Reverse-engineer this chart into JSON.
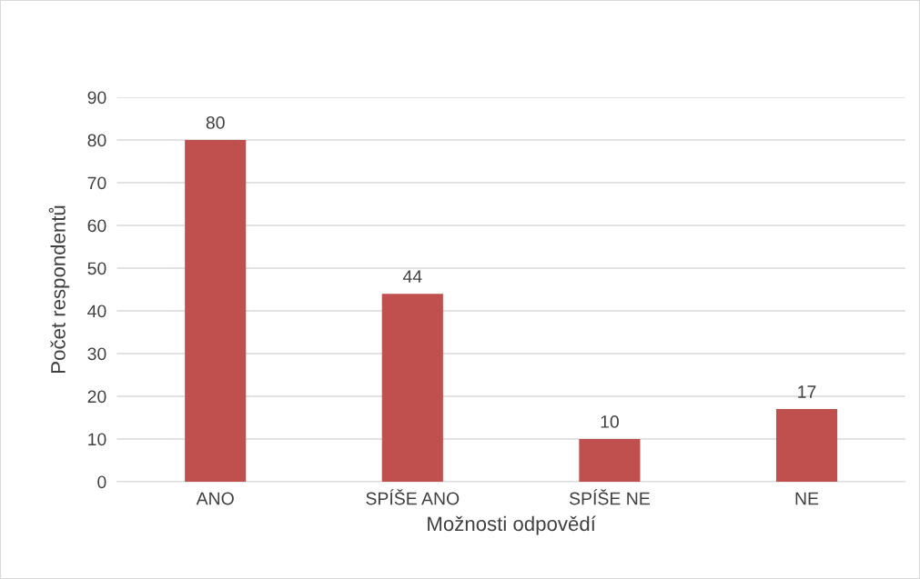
{
  "chart_data": {
    "type": "bar",
    "xlabel": "Možnosti odpovědí",
    "ylabel": "Počet respondentů",
    "categories": [
      "ANO",
      "SPÍŠE ANO",
      "SPÍŠE NE",
      "NE"
    ],
    "values": [
      80,
      44,
      10,
      17
    ],
    "color": "#c0504d",
    "ylim": [
      0,
      90
    ],
    "yticks": [
      0,
      10,
      20,
      30,
      40,
      50,
      60,
      70,
      80,
      90
    ],
    "grid": "y",
    "data_labels": true
  }
}
